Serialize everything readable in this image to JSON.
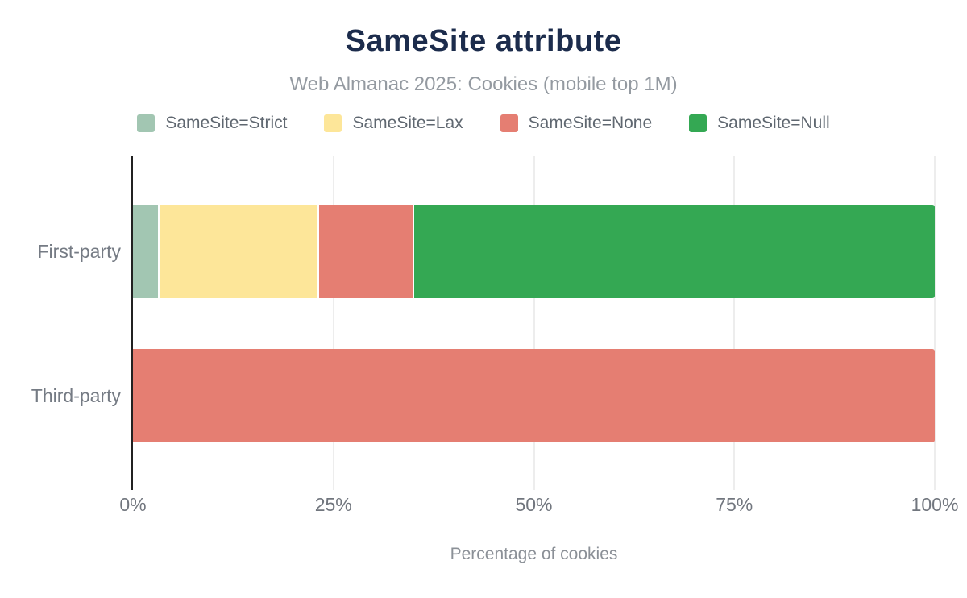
{
  "header": {
    "title": "SameSite attribute",
    "subtitle": "Web Almanac 2025: Cookies (mobile top 1M)"
  },
  "chart_data": {
    "type": "bar",
    "orientation": "horizontal",
    "stacked": true,
    "title": "SameSite attribute",
    "subtitle": "Web Almanac 2025: Cookies (mobile top 1M)",
    "xlabel": "Percentage of cookies",
    "ylabel": "",
    "xlim": [
      0,
      100
    ],
    "grid": true,
    "legend_position": "top",
    "categories": [
      "First-party",
      "Third-party"
    ],
    "series": [
      {
        "name": "SameSite=Strict",
        "color": "#a2c6b2",
        "values": [
          3.3,
          0
        ]
      },
      {
        "name": "SameSite=Lax",
        "color": "#fde699",
        "values": [
          19.9,
          0
        ]
      },
      {
        "name": "SameSite=None",
        "color": "#e57e72",
        "values": [
          11.9,
          100
        ]
      },
      {
        "name": "SameSite=Null",
        "color": "#34a853",
        "values": [
          64.9,
          0
        ]
      }
    ],
    "x_ticks": [
      {
        "value": 0,
        "label": "0%"
      },
      {
        "value": 25,
        "label": "25%"
      },
      {
        "value": 50,
        "label": "50%"
      },
      {
        "value": 75,
        "label": "75%"
      },
      {
        "value": 100,
        "label": "100%"
      }
    ]
  },
  "colors": {
    "title_color": "#1c2c4c",
    "subtitle_color": "#949aa1",
    "legend_text_color": "#5f6770",
    "category_text_color": "#757b84",
    "tick_text_color": "#71767e",
    "axis_title_color": "#8b9097",
    "gridline_color": "#ededed",
    "axis_color": "#212121"
  }
}
